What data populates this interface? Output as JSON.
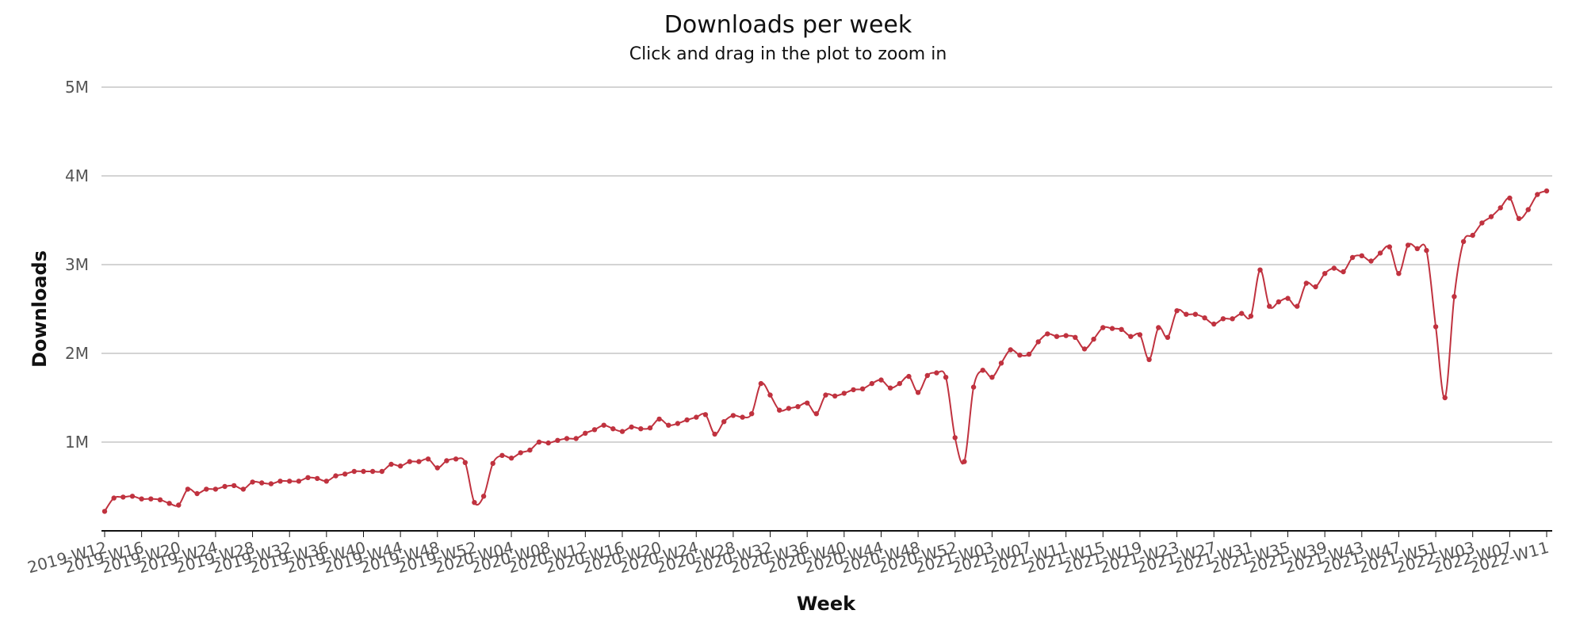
{
  "chart": {
    "title": "Downloads per week",
    "subtitle": "Click and drag in the plot to zoom in"
  },
  "colors": {
    "series": "#c0323f",
    "grid": "#c6c6c6",
    "axis": "#111111"
  },
  "chart_data": {
    "type": "line",
    "title": "Downloads per week",
    "subtitle": "Click and drag in the plot to zoom in",
    "xlabel": "Week",
    "ylabel": "Downloads",
    "ylim": [
      0,
      5000000
    ],
    "y_ticks": [
      1000000,
      2000000,
      3000000,
      4000000,
      5000000
    ],
    "y_tick_labels": [
      "1M",
      "2M",
      "3M",
      "4M",
      "5M"
    ],
    "x_tick_labels": [
      "2019-W12",
      "2019-W16",
      "2019-W20",
      "2019-W24",
      "2019-W28",
      "2019-W32",
      "2019-W36",
      "2019-W40",
      "2019-W44",
      "2019-W48",
      "2019-W52",
      "2020-W04",
      "2020-W08",
      "2020-W12",
      "2020-W16",
      "2020-W20",
      "2020-W24",
      "2020-W28",
      "2020-W32",
      "2020-W36",
      "2020-W40",
      "2020-W44",
      "2020-W48",
      "2020-W52",
      "2021-W03",
      "2021-W07",
      "2021-W11",
      "2021-W15",
      "2021-W19",
      "2021-W23",
      "2021-W27",
      "2021-W31",
      "2021-W35",
      "2021-W39",
      "2021-W43",
      "2021-W47",
      "2021-W51",
      "2022-W03",
      "2022-W07",
      "2022-W11"
    ],
    "grid": true,
    "legend": "none",
    "series": [
      {
        "values": [
          220000,
          370000,
          380000,
          390000,
          360000,
          360000,
          350000,
          310000,
          290000,
          470000,
          420000,
          470000,
          470000,
          500000,
          510000,
          470000,
          550000,
          540000,
          530000,
          560000,
          560000,
          560000,
          600000,
          590000,
          560000,
          620000,
          640000,
          670000,
          670000,
          670000,
          670000,
          750000,
          730000,
          780000,
          780000,
          810000,
          710000,
          790000,
          810000,
          770000,
          320000,
          390000,
          760000,
          850000,
          820000,
          880000,
          910000,
          1000000,
          990000,
          1020000,
          1040000,
          1040000,
          1100000,
          1140000,
          1190000,
          1150000,
          1120000,
          1170000,
          1150000,
          1160000,
          1260000,
          1190000,
          1210000,
          1250000,
          1280000,
          1310000,
          1090000,
          1230000,
          1300000,
          1280000,
          1320000,
          1660000,
          1530000,
          1360000,
          1380000,
          1400000,
          1440000,
          1320000,
          1530000,
          1520000,
          1550000,
          1590000,
          1600000,
          1660000,
          1700000,
          1610000,
          1660000,
          1740000,
          1560000,
          1750000,
          1780000,
          1730000,
          1050000,
          780000,
          1620000,
          1810000,
          1730000,
          1890000,
          2040000,
          1980000,
          1990000,
          2130000,
          2220000,
          2190000,
          2200000,
          2180000,
          2050000,
          2160000,
          2290000,
          2280000,
          2270000,
          2190000,
          2210000,
          1930000,
          2290000,
          2180000,
          2480000,
          2440000,
          2440000,
          2400000,
          2330000,
          2390000,
          2390000,
          2450000,
          2420000,
          2940000,
          2530000,
          2580000,
          2620000,
          2530000,
          2790000,
          2750000,
          2900000,
          2960000,
          2920000,
          3080000,
          3100000,
          3040000,
          3130000,
          3200000,
          2900000,
          3220000,
          3180000,
          3160000,
          2300000,
          1500000,
          2640000,
          3260000,
          3330000,
          3470000,
          3540000,
          3640000,
          3750000,
          3520000,
          3620000,
          3790000,
          3830000
        ]
      }
    ]
  }
}
